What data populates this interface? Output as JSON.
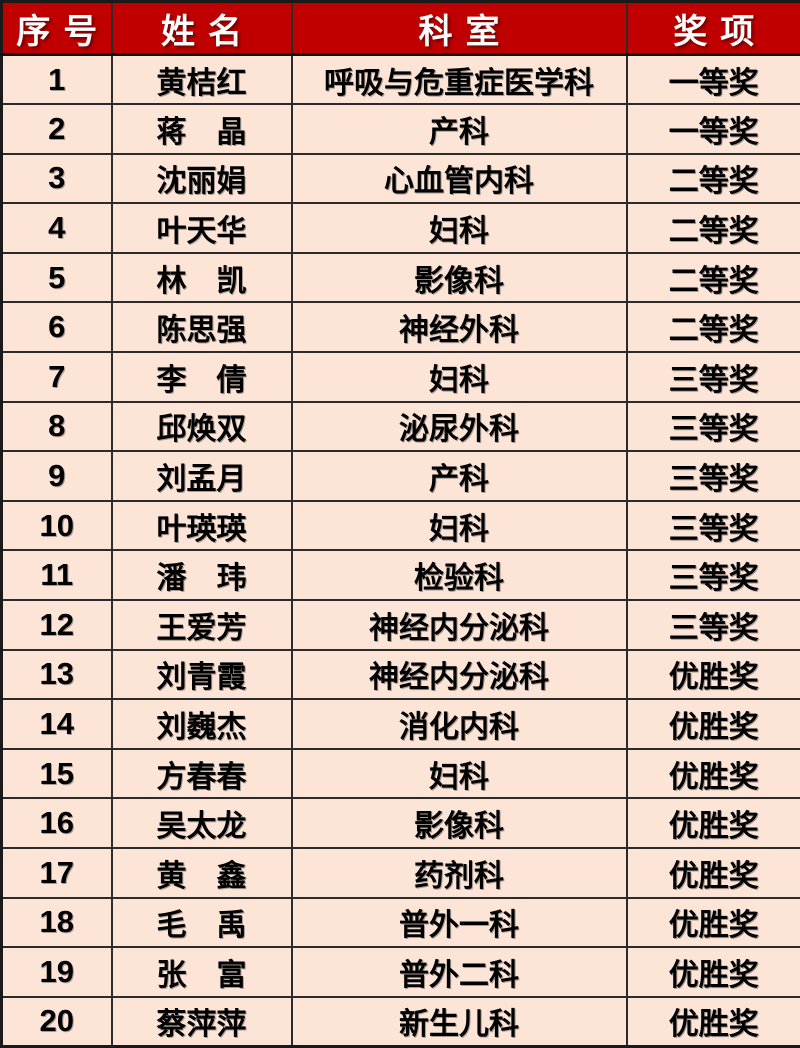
{
  "colors": {
    "header_background": "#C00000",
    "header_text": "#FFFFFF",
    "row_background": "#FCE4D6",
    "body_text": "#000000",
    "border": "#2b2b2b"
  },
  "table": {
    "headers": {
      "no": "序号",
      "name": "姓名",
      "dept": "科室",
      "award": "奖项"
    },
    "rows": [
      {
        "no": "1",
        "name": "黄桔红",
        "dept": "呼吸与危重症医学科",
        "award": "一等奖"
      },
      {
        "no": "2",
        "name": "蒋　晶",
        "dept": "产科",
        "award": "一等奖"
      },
      {
        "no": "3",
        "name": "沈丽娟",
        "dept": "心血管内科",
        "award": "二等奖"
      },
      {
        "no": "4",
        "name": "叶天华",
        "dept": "妇科",
        "award": "二等奖"
      },
      {
        "no": "5",
        "name": "林　凯",
        "dept": "影像科",
        "award": "二等奖"
      },
      {
        "no": "6",
        "name": "陈思强",
        "dept": "神经外科",
        "award": "二等奖"
      },
      {
        "no": "7",
        "name": "李　倩",
        "dept": "妇科",
        "award": "三等奖"
      },
      {
        "no": "8",
        "name": "邱焕双",
        "dept": "泌尿外科",
        "award": "三等奖"
      },
      {
        "no": "9",
        "name": "刘孟月",
        "dept": "产科",
        "award": "三等奖"
      },
      {
        "no": "10",
        "name": "叶瑛瑛",
        "dept": "妇科",
        "award": "三等奖"
      },
      {
        "no": "11",
        "name": "潘　玮",
        "dept": "检验科",
        "award": "三等奖"
      },
      {
        "no": "12",
        "name": "王爱芳",
        "dept": "神经内分泌科",
        "award": "三等奖"
      },
      {
        "no": "13",
        "name": "刘青霞",
        "dept": "神经内分泌科",
        "award": "优胜奖"
      },
      {
        "no": "14",
        "name": "刘巍杰",
        "dept": "消化内科",
        "award": "优胜奖"
      },
      {
        "no": "15",
        "name": "方春春",
        "dept": "妇科",
        "award": "优胜奖"
      },
      {
        "no": "16",
        "name": "吴太龙",
        "dept": "影像科",
        "award": "优胜奖"
      },
      {
        "no": "17",
        "name": "黄　鑫",
        "dept": "药剂科",
        "award": "优胜奖"
      },
      {
        "no": "18",
        "name": "毛　禹",
        "dept": "普外一科",
        "award": "优胜奖"
      },
      {
        "no": "19",
        "name": "张　富",
        "dept": "普外二科",
        "award": "优胜奖"
      },
      {
        "no": "20",
        "name": "蔡萍萍",
        "dept": "新生儿科",
        "award": "优胜奖"
      }
    ]
  }
}
